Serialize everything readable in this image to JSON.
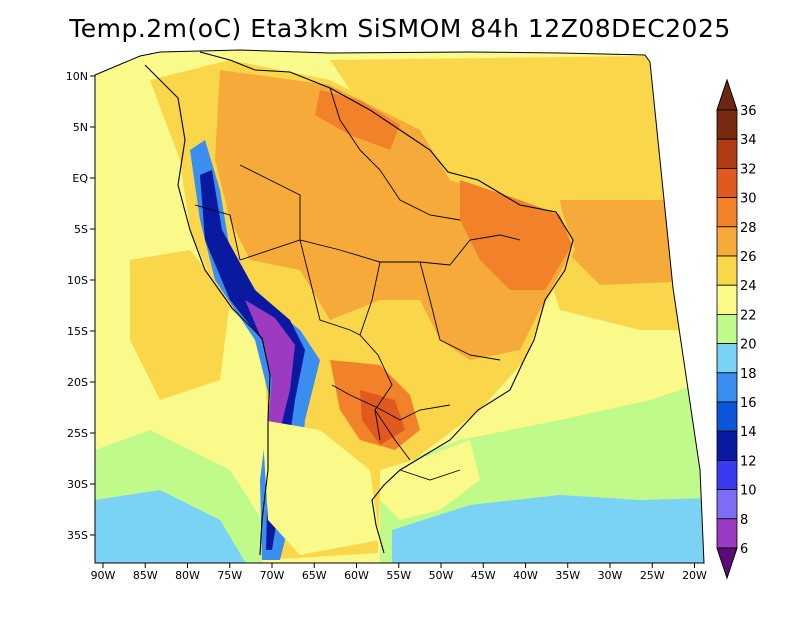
{
  "title": "Temp.2m(oC) Eta3km SiSMOM 84h 12Z08DEC2025",
  "chart_data": {
    "type": "heatmap",
    "title": "Temp.2m(oC) Eta3km SiSMOM 84h 12Z08DEC2025",
    "variable": "Temp.2m",
    "units": "oC",
    "x_range": [
      -91,
      -20
    ],
    "y_range": [
      -38,
      11
    ],
    "lon_ticks": [
      "90W",
      "85W",
      "80W",
      "75W",
      "70W",
      "65W",
      "60W",
      "55W",
      "50W",
      "45W",
      "40W",
      "35W",
      "30W",
      "25W",
      "20W"
    ],
    "lat_ticks": [
      "10N",
      "5N",
      "EQ",
      "5S",
      "10S",
      "15S",
      "20S",
      "25S",
      "30S",
      "35S"
    ],
    "colorbar": {
      "labels": [
        "6",
        "8",
        "10",
        "12",
        "14",
        "16",
        "18",
        "20",
        "22",
        "24",
        "26",
        "28",
        "30",
        "32",
        "34",
        "36"
      ],
      "colors": [
        "#6a1a9a",
        "#9d3ac2",
        "#7e6ef5",
        "#3a3af0",
        "#0a1aa0",
        "#0a55d8",
        "#3a8ef0",
        "#7ad2f5",
        "#c0fa8a",
        "#fafa8a",
        "#fad64a",
        "#f6aa3a",
        "#f2822a",
        "#e05a1e",
        "#b03c14",
        "#7a2a0e"
      ],
      "over_color": "#6a2810",
      "under_color": "#5a0a7a"
    }
  }
}
